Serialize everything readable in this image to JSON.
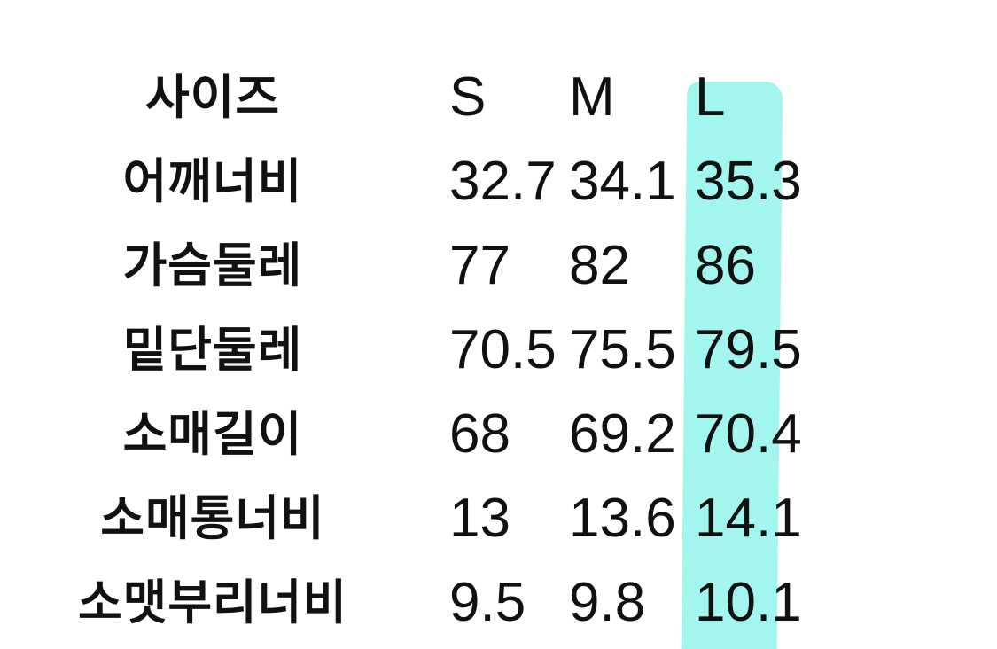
{
  "highlight_color": "#a3f6ee",
  "header": {
    "label": "사이즈",
    "sizes": [
      "S",
      "M",
      "L"
    ]
  },
  "rows": [
    {
      "label": "어깨너비",
      "values": [
        "32.7",
        "34.1",
        "35.3"
      ]
    },
    {
      "label": "가슴둘레",
      "values": [
        "77",
        "82",
        "86"
      ]
    },
    {
      "label": "밑단둘레",
      "values": [
        "70.5",
        "75.5",
        "79.5"
      ]
    },
    {
      "label": "소매길이",
      "values": [
        "68",
        "69.2",
        "70.4"
      ]
    },
    {
      "label": "소매통너비",
      "values": [
        "13",
        "13.6",
        "14.1"
      ]
    },
    {
      "label": "소맷부리너비",
      "values": [
        "9.5",
        "9.8",
        "10.1"
      ]
    }
  ]
}
